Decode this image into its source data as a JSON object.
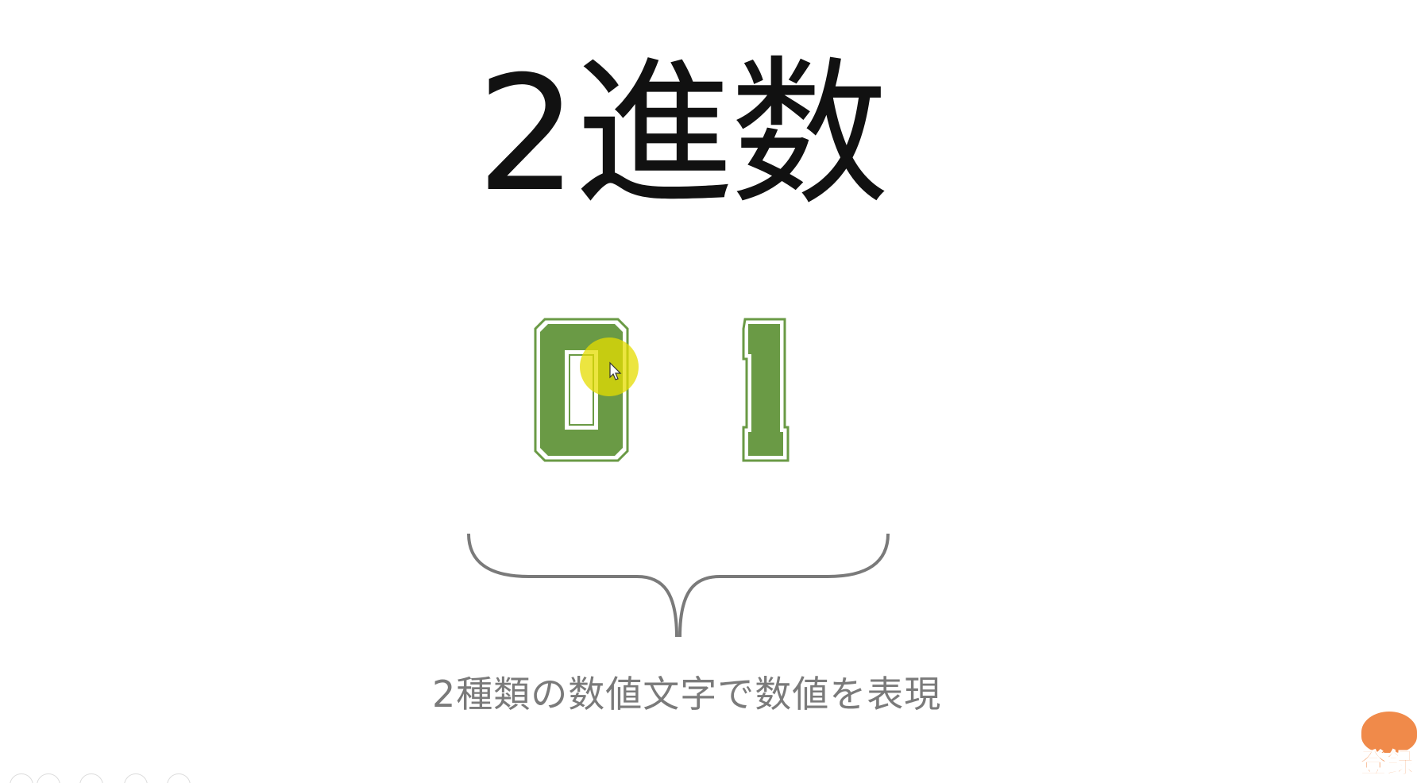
{
  "slide": {
    "title": "2進数",
    "digits": [
      "0",
      "1"
    ],
    "caption": "2種類の数値文字で数値を表現"
  },
  "subscribe": {
    "label": "登録"
  },
  "colors": {
    "digit_fill": "#6a9a45",
    "digit_outline": "#5f8f3c",
    "brace": "#7a7a7a",
    "caption": "#7a7a7a",
    "highlight": "#e6dc00",
    "subscribe": "#f07a30"
  },
  "icons": {
    "cursor": "mouse-cursor-icon",
    "subscribe": "subscribe-badge-icon",
    "toolbar": [
      "prev-icon",
      "pen-icon",
      "slides-icon",
      "zoom-icon",
      "more-icon"
    ]
  }
}
